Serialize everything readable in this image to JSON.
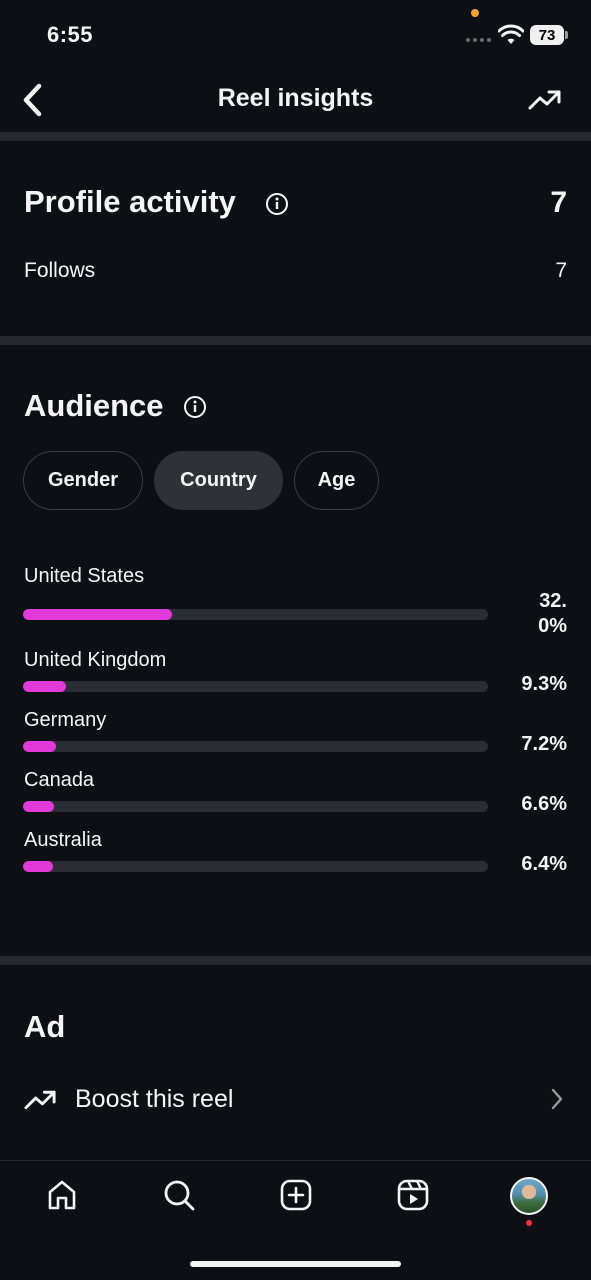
{
  "status_bar": {
    "time": "6:55",
    "battery": "73"
  },
  "header": {
    "title": "Reel insights"
  },
  "profile_activity": {
    "title": "Profile activity",
    "total": "7",
    "rows": [
      {
        "label": "Follows",
        "value": "7"
      }
    ]
  },
  "audience": {
    "title": "Audience",
    "tabs": [
      {
        "label": "Gender",
        "selected": false
      },
      {
        "label": "Country",
        "selected": true
      },
      {
        "label": "Age",
        "selected": false
      }
    ],
    "countries": [
      {
        "name": "United States",
        "percent_label": "32.0%",
        "value": 32.0
      },
      {
        "name": "United Kingdom",
        "percent_label": "9.3%",
        "value": 9.3
      },
      {
        "name": "Germany",
        "percent_label": "7.2%",
        "value": 7.2
      },
      {
        "name": "Canada",
        "percent_label": "6.6%",
        "value": 6.6
      },
      {
        "name": "Australia",
        "percent_label": "6.4%",
        "value": 6.4
      }
    ],
    "bar_color": "#e13ad9"
  },
  "ad": {
    "title": "Ad",
    "boost_label": "Boost this reel"
  },
  "nav": {
    "items": [
      "home-icon",
      "search-icon",
      "create-icon",
      "reels-icon",
      "profile-avatar"
    ]
  },
  "colors": {
    "background": "#0c1014",
    "divider": "#26292e",
    "accent": "#e13ad9"
  }
}
